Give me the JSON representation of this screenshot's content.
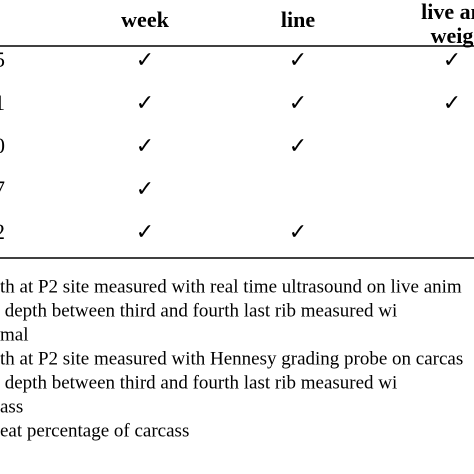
{
  "table": {
    "columns": [
      {
        "key": "week",
        "lines": [
          "week"
        ]
      },
      {
        "key": "line",
        "lines": [
          "line"
        ]
      },
      {
        "key": "live",
        "lines": [
          "live an",
          "weig"
        ]
      }
    ],
    "rows": [
      {
        "label": "5",
        "week": "✓",
        "line": "✓",
        "live": "✓"
      },
      {
        "label": "1",
        "week": "✓",
        "line": "✓",
        "live": "✓"
      },
      {
        "label": "0",
        "week": "✓",
        "line": "✓"
      },
      {
        "label": "7",
        "week": "✓"
      },
      {
        "label": "2",
        "week": "✓",
        "line": "✓"
      }
    ]
  },
  "notes": [
    "th at P2 site measured with real time ultrasound on live anim",
    " depth between third and fourth last rib measured wi",
    "mal",
    "th at P2 site measured with Hennesy grading probe on carcas",
    " depth between third and fourth last rib measured wi",
    "ass",
    "eat percentage of carcass"
  ]
}
